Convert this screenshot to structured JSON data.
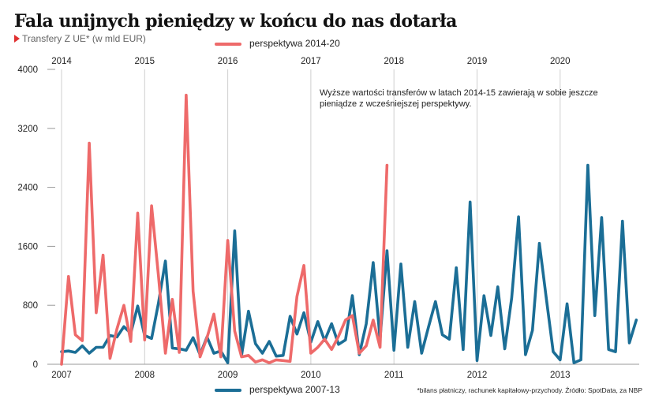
{
  "header": {
    "title": "Fala unijnych pieniędzy w końcu do nas dotarła",
    "subtitle": "Transfery Z UE* (w mld EUR)"
  },
  "footer": {
    "source": "*bilans płatniczy, rachunek kapitałowy-przychody. Źródło: SpotData, za NBP"
  },
  "colors": {
    "red": "#ee6a6a",
    "blue": "#1b6e96",
    "grid": "#cfcfcf"
  },
  "chart_data": {
    "type": "line",
    "title": "Fala unijnych pieniędzy w końcu do nas dotarła",
    "subtitle": "Transfery Z UE* (w mld EUR)",
    "ylim": [
      0,
      4000
    ],
    "yticks": [
      0,
      800,
      1600,
      2400,
      3200,
      4000
    ],
    "grid": "vertical lines at each year",
    "annotation": "Wyższe wartości transferów w latach 2014-15 zawierają w sobie jeszcze pieniądze z wcześniejszej perspektywy.",
    "legend_placement": "top (red), bottom (blue)",
    "series": [
      {
        "name": "perspektywa 2014-20",
        "axis": "top",
        "x_ticks": [
          "2014",
          "2015",
          "2016",
          "2017",
          "2018",
          "2019",
          "2020"
        ],
        "x_start": 2014.0,
        "step": 0.0833333,
        "values": [
          0,
          1190,
          400,
          320,
          3000,
          700,
          1480,
          80,
          480,
          800,
          310,
          2050,
          330,
          2150,
          1200,
          150,
          880,
          160,
          3650,
          990,
          100,
          360,
          680,
          100,
          1680,
          450,
          100,
          120,
          30,
          60,
          20,
          60,
          50,
          40,
          920,
          1340,
          150,
          230,
          340,
          200,
          380,
          600,
          660,
          150,
          250,
          600,
          230,
          2700
        ]
      },
      {
        "name": "perspektywa 2007-13",
        "axis": "bottom",
        "x_ticks": [
          "2007",
          "2008",
          "2009",
          "2010",
          "2011",
          "2012",
          "2013"
        ],
        "x_start": 2007.0,
        "step": 0.0833333,
        "values": [
          170,
          180,
          160,
          250,
          150,
          230,
          230,
          390,
          370,
          510,
          420,
          790,
          390,
          350,
          830,
          1400,
          220,
          210,
          190,
          360,
          130,
          370,
          150,
          180,
          20,
          1810,
          120,
          720,
          280,
          150,
          310,
          110,
          120,
          650,
          410,
          700,
          300,
          580,
          320,
          550,
          270,
          330,
          930,
          130,
          550,
          1380,
          340,
          1540,
          190,
          1360,
          230,
          850,
          150,
          510,
          850,
          400,
          340,
          1310,
          200,
          2200,
          50,
          930,
          390,
          1050,
          210,
          900,
          2000,
          130,
          460,
          1640,
          900,
          170,
          60,
          820,
          20,
          60,
          2700,
          660,
          1990,
          200,
          170,
          1940,
          290,
          600
        ]
      }
    ]
  }
}
